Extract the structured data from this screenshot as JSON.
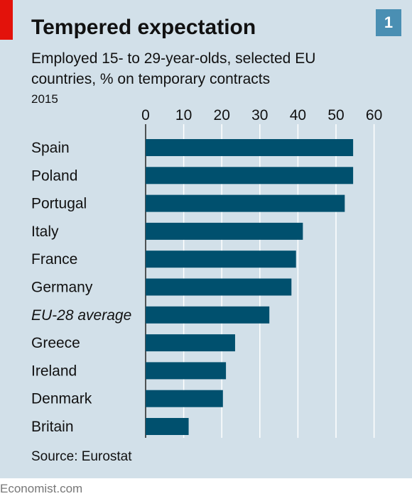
{
  "header": {
    "badge": "1",
    "title": "Tempered expectation",
    "subtitle": "Employed 15- to 29-year-olds, selected EU countries, % on temporary contracts",
    "year": "2015"
  },
  "footer": {
    "source": "Source: Eurostat",
    "brand": "Economist.com"
  },
  "colors": {
    "panel": "#d2e0e9",
    "bar": "#00506e",
    "accent_red": "#e3120b",
    "badge": "#4a8fb3"
  },
  "chart_data": {
    "type": "bar",
    "orientation": "horizontal",
    "categories": [
      "Spain",
      "Poland",
      "Portugal",
      "Italy",
      "France",
      "Germany",
      "EU-28 average",
      "Greece",
      "Ireland",
      "Denmark",
      "Britain"
    ],
    "values": [
      54.5,
      54.5,
      52.3,
      41.3,
      39.5,
      38.3,
      32.5,
      23.5,
      21.1,
      20.3,
      11.3
    ],
    "highlight_category": "EU-28 average",
    "xlim": [
      0,
      60
    ],
    "xticks": [
      0,
      10,
      20,
      30,
      40,
      50,
      60
    ],
    "xaxis_position": "top",
    "grid": true
  }
}
